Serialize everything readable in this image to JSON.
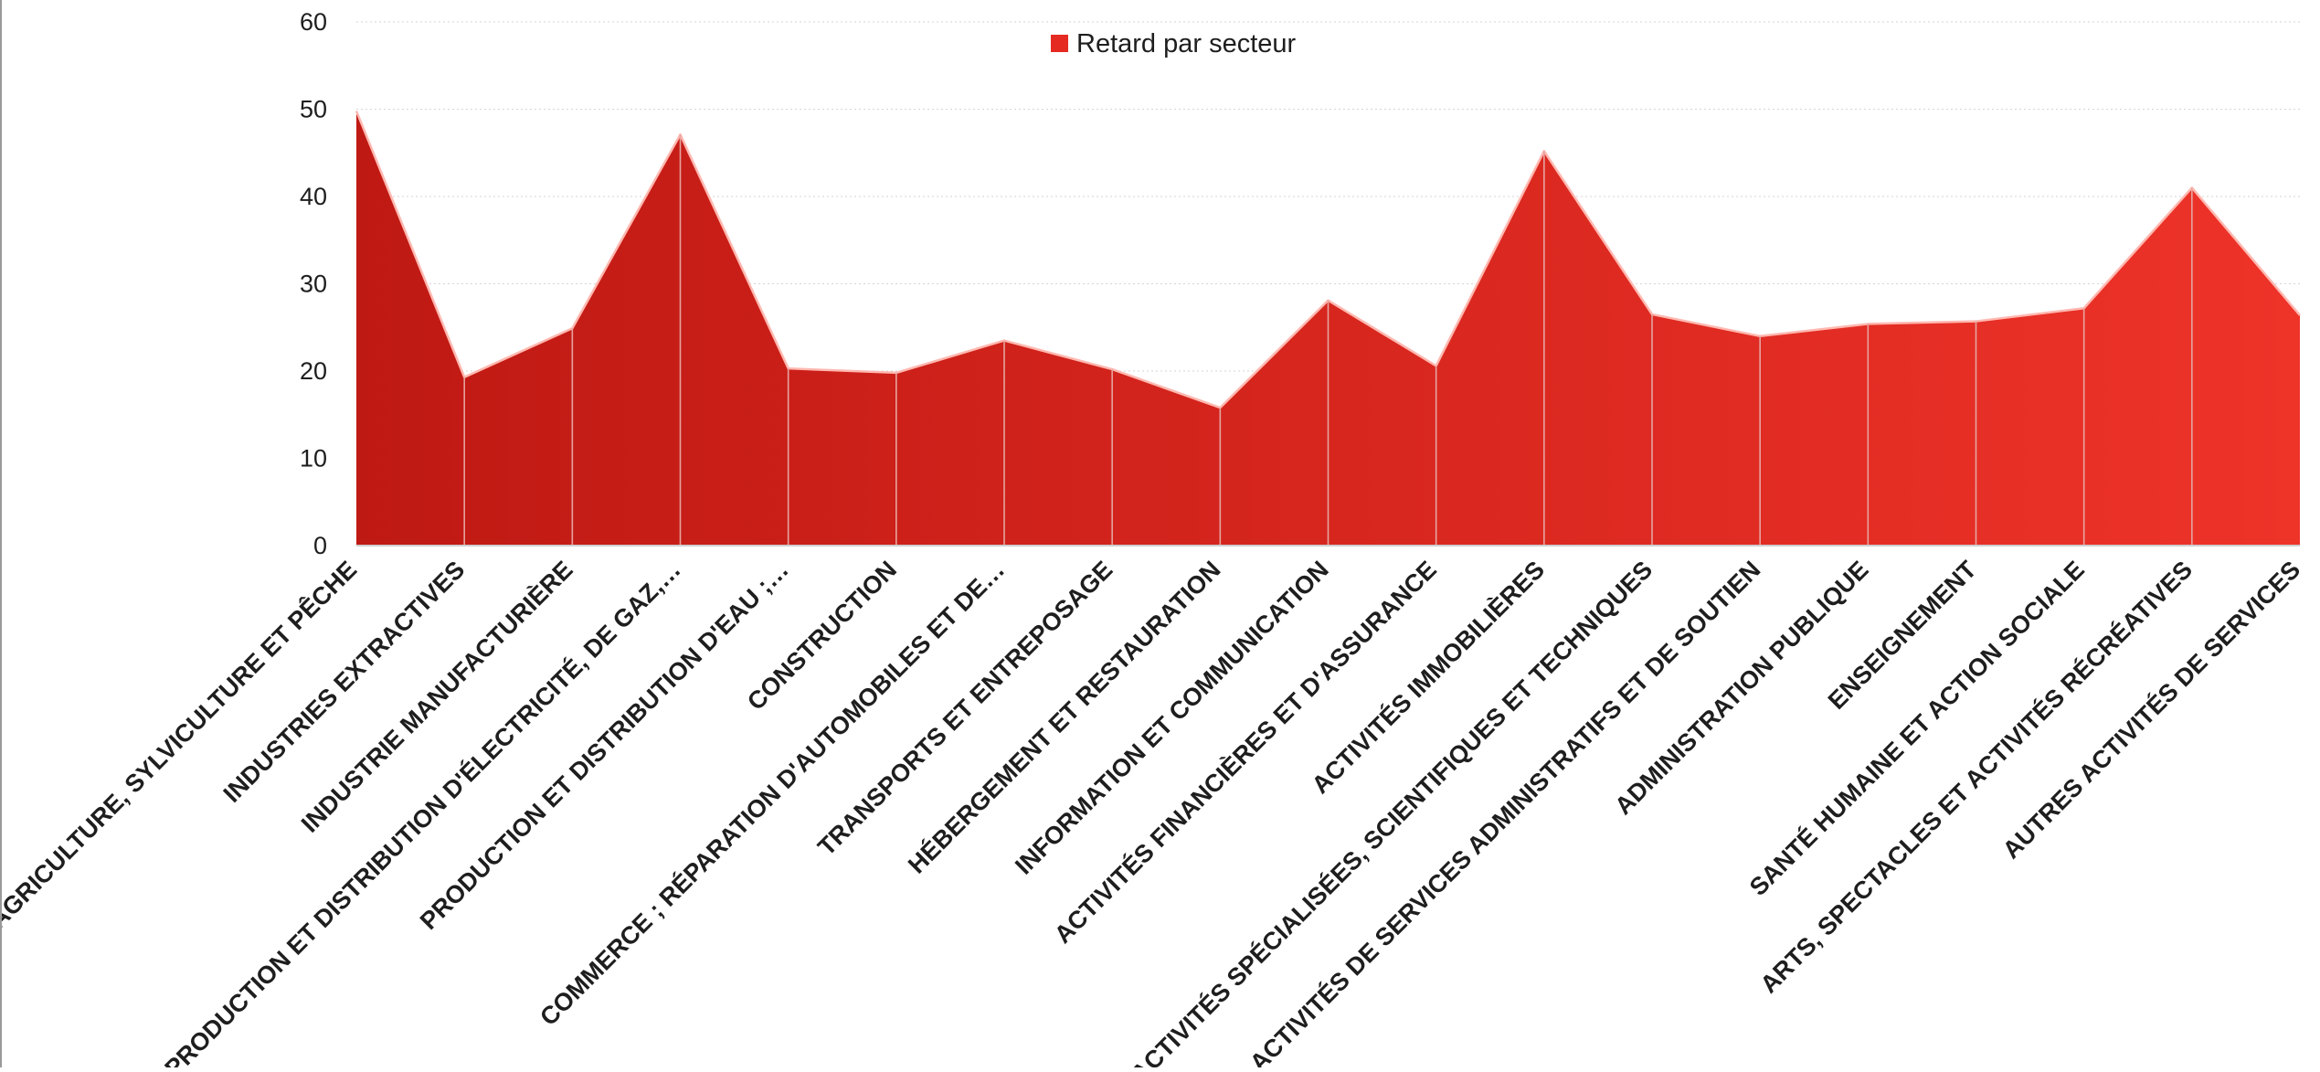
{
  "chart_data": {
    "type": "area",
    "series": [
      {
        "name": "Retard par secteur",
        "values": [
          49.8,
          19.3,
          24.9,
          47.1,
          20.3,
          19.8,
          23.5,
          20.2,
          15.8,
          28.1,
          20.6,
          45.2,
          26.5,
          24.0,
          25.4,
          25.7,
          27.2,
          41.0,
          26.4
        ]
      }
    ],
    "categories": [
      "AGRICULTURE, SYLVICULTURE ET PÊCHE",
      "INDUSTRIES EXTRACTIVES",
      "INDUSTRIE MANUFACTURIÈRE",
      "PRODUCTION ET DISTRIBUTION D'ÉLECTRICITÉ, DE GAZ,…",
      "PRODUCTION ET DISTRIBUTION D'EAU ;…",
      "CONSTRUCTION",
      "COMMERCE ; RÉPARATION D'AUTOMOBILES ET DE…",
      "TRANSPORTS ET ENTREPOSAGE",
      "HÉBERGEMENT ET RESTAURATION",
      "INFORMATION ET COMMUNICATION",
      "ACTIVITÉS FINANCIÈRES ET D'ASSURANCE",
      "ACTIVITÉS IMMOBILIÈRES",
      "ACTIVITÉS SPÉCIALISÉES, SCIENTIFIQUES ET TECHNIQUES",
      "ACTIVITÉS DE SERVICES ADMINISTRATIFS ET DE SOUTIEN",
      "ADMINISTRATION PUBLIQUE",
      "ENSEIGNEMENT",
      "SANTÉ HUMAINE ET ACTION SOCIALE",
      "ARTS, SPECTACLES ET ACTIVITÉS RÉCRÉATIVES",
      "AUTRES ACTIVITÉS DE SERVICES"
    ],
    "yticks": [
      "0",
      "10",
      "20",
      "30",
      "40",
      "50",
      "60"
    ],
    "ylim": [
      0,
      60
    ],
    "grid": true,
    "legend_position": "top-center",
    "title": "",
    "xlabel": "",
    "ylabel": ""
  },
  "colors": {
    "fill_left": "#bf1913",
    "fill_right": "#ee3329",
    "outline": "#ffb8b0",
    "divider": "#e6a4a0",
    "legend_swatch": "#e52a22",
    "grid": "#d4d4d4",
    "axis": "#cfcfcf",
    "text": "#1e1e1e"
  }
}
